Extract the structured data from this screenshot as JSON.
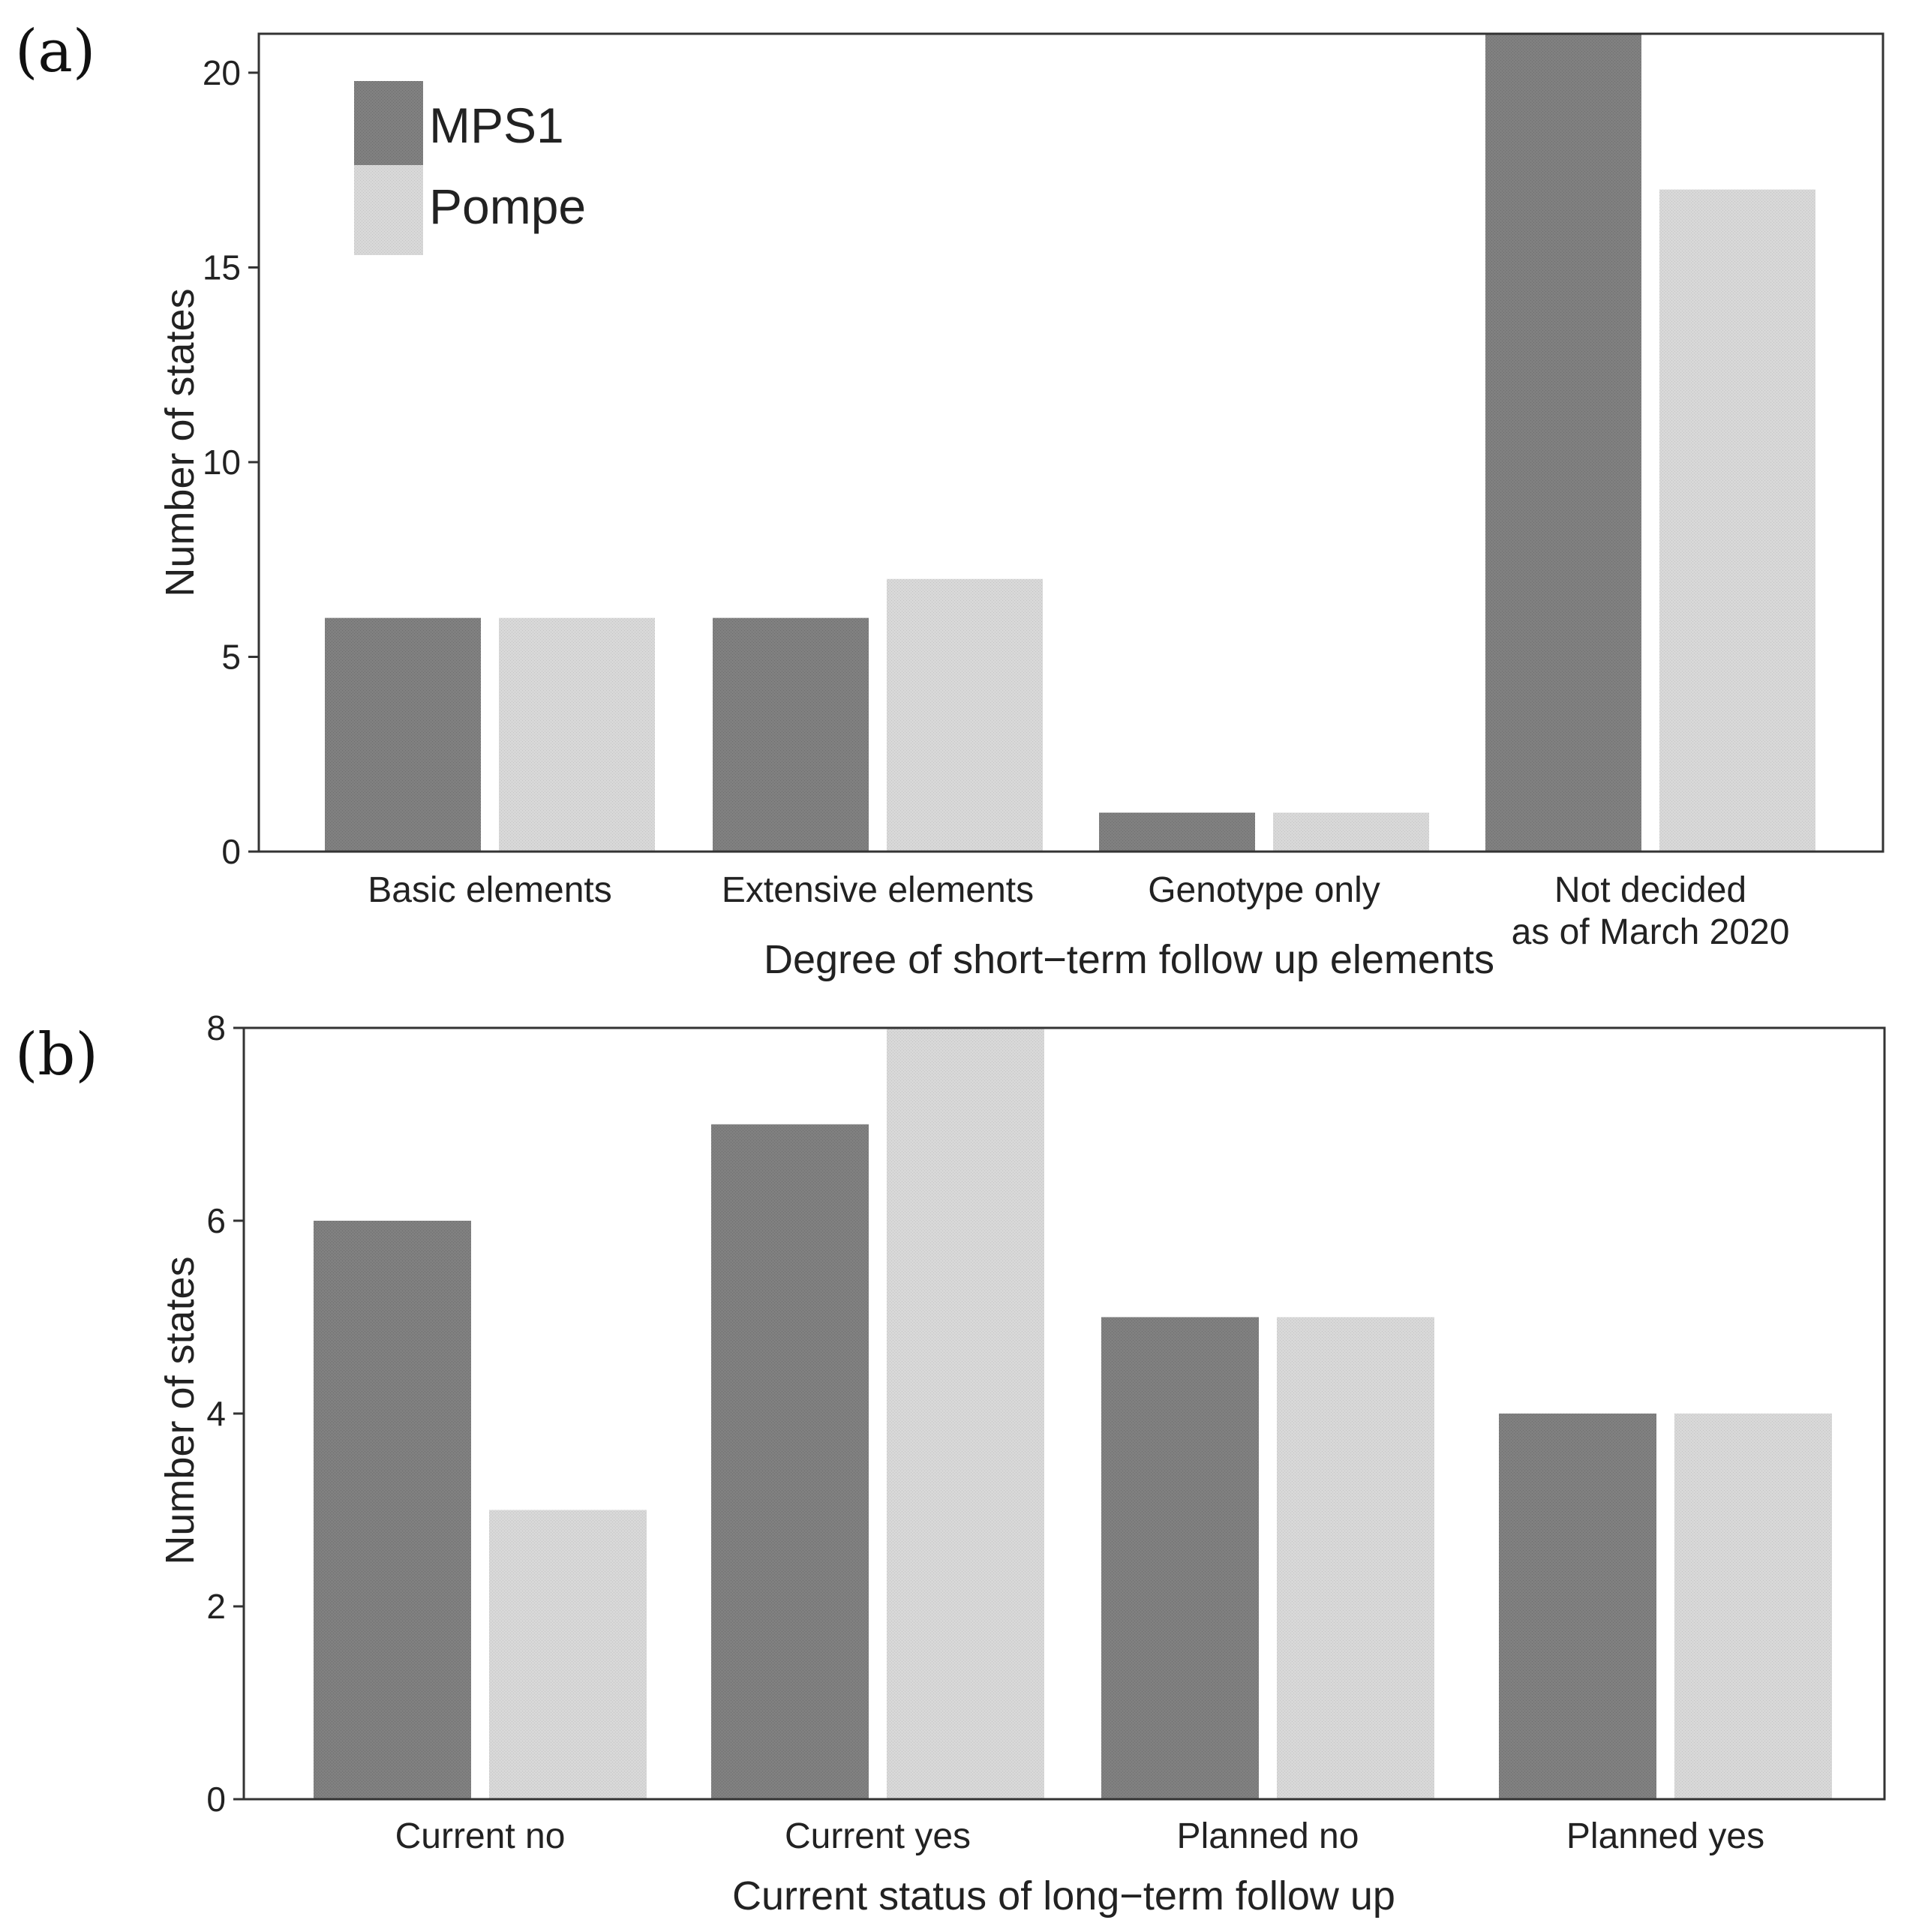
{
  "colors": {
    "MPS1": "#7d7d7d",
    "Pompe": "#d6d6d6"
  },
  "chart_data": [
    {
      "type": "bar",
      "panel_label": "(a)",
      "title": "",
      "xlabel": "Degree of short−term follow up elements",
      "ylabel": "Number of states",
      "ylim": [
        0,
        21
      ],
      "yticks": [
        0,
        5,
        10,
        15,
        20
      ],
      "categories": [
        [
          "Basic elements"
        ],
        [
          "Extensive elements"
        ],
        [
          "Genotype only"
        ],
        [
          "Not decided",
          "as of March 2020"
        ]
      ],
      "series": [
        {
          "name": "MPS1",
          "values": [
            6,
            6,
            1,
            21
          ]
        },
        {
          "name": "Pompe",
          "values": [
            6,
            7,
            1,
            17
          ]
        }
      ],
      "legend": {
        "placement": "top-left",
        "entries": [
          "MPS1",
          "Pompe"
        ]
      },
      "grid": false
    },
    {
      "type": "bar",
      "panel_label": "(b)",
      "title": "",
      "xlabel": "Current status of long−term follow up",
      "ylabel": "Number of states",
      "ylim": [
        0,
        8
      ],
      "yticks": [
        0,
        2,
        4,
        6,
        8
      ],
      "categories": [
        [
          "Current no"
        ],
        [
          "Current yes"
        ],
        [
          "Planned no"
        ],
        [
          "Planned yes"
        ]
      ],
      "series": [
        {
          "name": "MPS1",
          "values": [
            6,
            7,
            5,
            4
          ]
        },
        {
          "name": "Pompe",
          "values": [
            3,
            8,
            5,
            4
          ]
        }
      ],
      "grid": false
    }
  ]
}
